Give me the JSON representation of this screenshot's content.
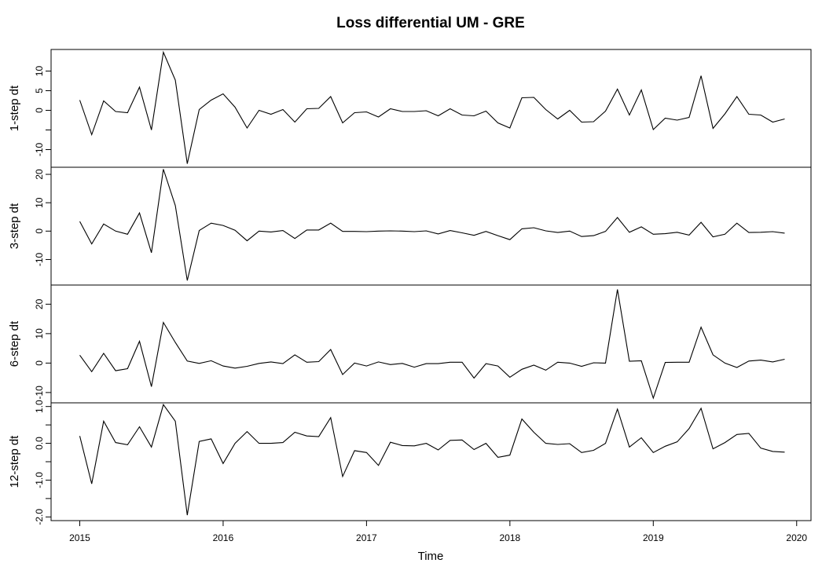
{
  "chart_data": {
    "type": "line",
    "title": "Loss differential UM - GRE",
    "xlabel": "Time",
    "x_ticks": [
      "2015",
      "2016",
      "2017",
      "2018",
      "2019",
      "2020"
    ],
    "x_start": 2015,
    "x_step": 0.0833333,
    "xlim": [
      2014.8,
      2020.1
    ],
    "panels": [
      {
        "ylabel": "1-step dt",
        "ylim": [
          -14.5,
          15.5
        ],
        "y_ticks": [
          -10,
          -5,
          0,
          5,
          10
        ],
        "y_tick_labels": [
          "-10",
          "",
          "0",
          "5",
          "10"
        ],
        "values": [
          2.6,
          -6.2,
          2.4,
          -0.3,
          -0.6,
          5.9,
          -5.0,
          14.8,
          7.7,
          -13.6,
          0.2,
          2.6,
          4.2,
          0.8,
          -4.5,
          0.0,
          -1.0,
          0.2,
          -3.0,
          0.4,
          0.5,
          3.5,
          -3.2,
          -0.6,
          -0.4,
          -1.7,
          0.4,
          -0.3,
          -0.3,
          -0.1,
          -1.4,
          0.4,
          -1.2,
          -1.4,
          -0.2,
          -3.2,
          -4.5,
          3.2,
          3.3,
          0.2,
          -2.2,
          0.0,
          -3.0,
          -2.9,
          -0.2,
          5.4,
          -1.2,
          5.2,
          -4.9,
          -2.0,
          -2.5,
          -1.8,
          8.8,
          -4.6,
          -0.9,
          3.5,
          -1.0,
          -1.2,
          -3.0,
          -2.2
        ]
      },
      {
        "ylabel": "3-step dt",
        "ylim": [
          -19,
          22.5
        ],
        "y_ticks": [
          -10,
          0,
          10,
          20
        ],
        "y_tick_labels": [
          "-10",
          "0",
          "10",
          "20"
        ],
        "values": [
          3.4,
          -4.5,
          2.5,
          0.0,
          -1.1,
          6.4,
          -7.6,
          21.8,
          9.0,
          -17.4,
          0.2,
          2.8,
          2.0,
          0.3,
          -3.4,
          0.0,
          -0.3,
          0.2,
          -2.6,
          0.4,
          0.4,
          2.8,
          -0.1,
          -0.1,
          -0.2,
          0.0,
          0.1,
          0.0,
          -0.2,
          0.1,
          -1.0,
          0.2,
          -0.6,
          -1.5,
          -0.1,
          -1.6,
          -3.0,
          0.8,
          1.2,
          0.1,
          -0.5,
          0.0,
          -1.9,
          -1.6,
          -0.1,
          4.8,
          -0.4,
          1.5,
          -1.1,
          -0.9,
          -0.4,
          -1.4,
          3.1,
          -2.0,
          -1.1,
          2.8,
          -0.5,
          -0.4,
          -0.2,
          -0.7
        ]
      },
      {
        "ylabel": "6-step dt",
        "ylim": [
          -13.5,
          26.5
        ],
        "y_ticks": [
          -10,
          0,
          10,
          20
        ],
        "y_tick_labels": [
          "-10",
          "0",
          "10",
          "20"
        ],
        "values": [
          2.7,
          -2.9,
          3.3,
          -2.6,
          -1.9,
          7.4,
          -8.0,
          13.8,
          7.0,
          0.7,
          -0.1,
          0.8,
          -1.0,
          -1.7,
          -1.1,
          -0.1,
          0.4,
          -0.2,
          2.8,
          0.3,
          0.5,
          4.6,
          -3.9,
          0.0,
          -1.0,
          0.4,
          -0.5,
          -0.1,
          -1.4,
          -0.2,
          -0.2,
          0.3,
          0.3,
          -5.1,
          -0.2,
          -1.0,
          -4.8,
          -2.1,
          -0.7,
          -2.4,
          0.3,
          0.0,
          -1.1,
          0.1,
          0.0,
          25.0,
          0.6,
          0.8,
          -11.9,
          0.2,
          0.3,
          0.3,
          12.2,
          2.8,
          0.0,
          -1.5,
          0.7,
          1.0,
          0.4,
          1.3
        ]
      },
      {
        "ylabel": "12-step dt",
        "ylim": [
          -2.1,
          1.1
        ],
        "y_ticks": [
          -2.0,
          -1.5,
          -1.0,
          -0.5,
          0.0,
          0.5,
          1.0
        ],
        "y_tick_labels": [
          "-2.0",
          "",
          "-1.0",
          "",
          "0.0",
          "",
          "1.0"
        ],
        "values": [
          0.2,
          -1.1,
          0.6,
          0.02,
          -0.04,
          0.45,
          -0.1,
          1.05,
          0.6,
          -1.95,
          0.05,
          0.12,
          -0.55,
          0.0,
          0.32,
          0.0,
          0.0,
          0.02,
          0.3,
          0.2,
          0.18,
          0.7,
          -0.9,
          -0.2,
          -0.25,
          -0.6,
          0.03,
          -0.06,
          -0.07,
          0.0,
          -0.18,
          0.08,
          0.09,
          -0.17,
          0.0,
          -0.38,
          -0.32,
          0.66,
          0.3,
          0.0,
          -0.03,
          -0.01,
          -0.25,
          -0.19,
          0.0,
          0.93,
          -0.1,
          0.15,
          -0.25,
          -0.08,
          0.04,
          0.4,
          0.95,
          -0.15,
          0.02,
          0.24,
          0.27,
          -0.13,
          -0.22,
          -0.24
        ]
      }
    ]
  }
}
